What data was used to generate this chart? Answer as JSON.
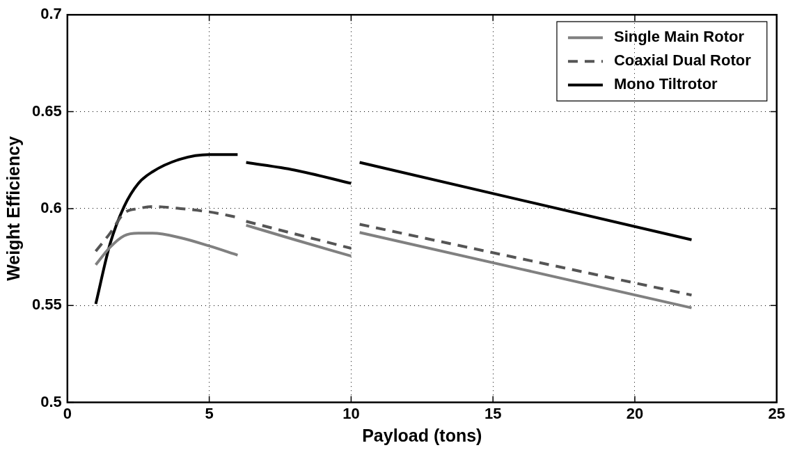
{
  "chart_data": {
    "type": "line",
    "xlabel": "Payload (tons)",
    "ylabel": "Weight Efficiency",
    "x": [
      1,
      1.5,
      2,
      2.5,
      3,
      4,
      5,
      6,
      6.15,
      6.3,
      8,
      10,
      10.15,
      10.3,
      22
    ],
    "series": [
      {
        "name": "Single Main Rotor",
        "color": "#808080",
        "line_style": "solid",
        "values": [
          0.571,
          0.58,
          0.586,
          0.5873,
          0.5873,
          0.5849,
          0.5807,
          0.576,
          null,
          0.5914,
          0.584,
          0.5755,
          null,
          0.5877,
          0.5488
        ]
      },
      {
        "name": "Coaxial Dual Rotor",
        "color": "#555555",
        "line_style": "dashed",
        "values": [
          0.578,
          0.5872,
          0.5976,
          0.6,
          0.601,
          0.6,
          0.5983,
          0.5955,
          null,
          0.5934,
          0.587,
          0.5795,
          null,
          0.5919,
          0.5554
        ]
      },
      {
        "name": "Mono Tiltrotor",
        "color": "#000000",
        "line_style": "solid",
        "values": [
          0.5508,
          0.5816,
          0.6011,
          0.613,
          0.619,
          0.6256,
          0.6279,
          0.6279,
          null,
          0.6238,
          0.6199,
          0.613,
          null,
          0.6238,
          0.5839
        ]
      }
    ],
    "xlim": [
      0,
      25
    ],
    "xticks": [
      0,
      5,
      10,
      15,
      20,
      25
    ],
    "ylim": [
      0.5,
      0.7
    ],
    "yticks": [
      0.5,
      0.55,
      0.6,
      0.65,
      0.7
    ],
    "grid": true,
    "legend": "top right",
    "marker": "none"
  }
}
